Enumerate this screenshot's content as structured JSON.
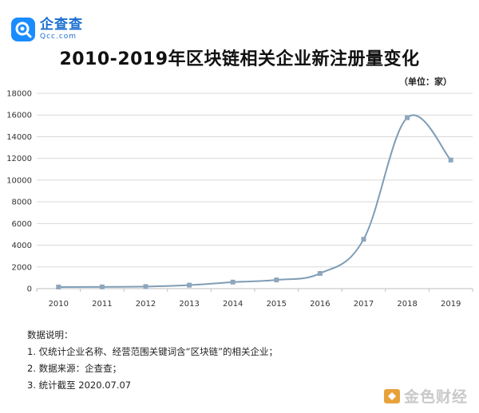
{
  "brand": {
    "name": "企查查",
    "domain": "Qcc.com",
    "color": "#1a8cff"
  },
  "watermark": {
    "text": "金色财经",
    "icon": "coin-icon"
  },
  "notes": {
    "heading": "数据说明：",
    "items": [
      "1. 仅统计企业名称、经营范围关键词含“区块链”的相关企业；",
      "2. 数据来源：企查查；",
      "3. 统计截至 2020.07.07"
    ]
  },
  "chart_data": {
    "type": "line",
    "title": "2010-2019年区块链相关企业新注册量变化",
    "unit_label": "（单位：家）",
    "xlabel": "",
    "ylabel": "",
    "categories": [
      "2010",
      "2011",
      "2012",
      "2013",
      "2014",
      "2015",
      "2016",
      "2017",
      "2018",
      "2019"
    ],
    "series": [
      {
        "values": [
          150,
          160,
          190,
          320,
          600,
          800,
          1400,
          4550,
          15750,
          11850
        ]
      }
    ],
    "ylim": [
      0,
      18000
    ],
    "yticks": [
      0,
      2000,
      4000,
      6000,
      8000,
      10000,
      12000,
      14000,
      16000,
      18000
    ],
    "grid": true,
    "legend": "none",
    "line_color": "#7f9db6",
    "marker_color": "#8ea6bd"
  }
}
